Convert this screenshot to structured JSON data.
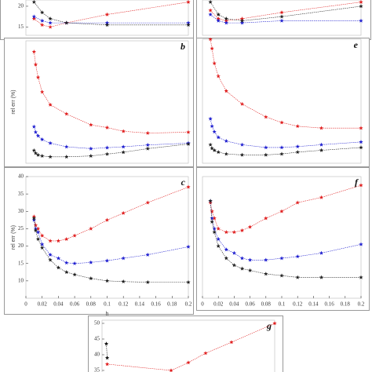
{
  "chart_data": [
    {
      "type": "line",
      "xlim": [
        0,
        0.2
      ],
      "ylim": [
        13,
        21.5
      ],
      "yticks": [
        15,
        20
      ],
      "x": [
        0.01,
        0.02,
        0.03,
        0.05,
        0.1,
        0.2
      ],
      "series": [
        {
          "name": "red",
          "color": "#e02020",
          "values": [
            17,
            15.5,
            15,
            16,
            18,
            21
          ]
        },
        {
          "name": "blue",
          "color": "#2020d0",
          "values": [
            17.5,
            16.5,
            16,
            16,
            16,
            16
          ]
        },
        {
          "name": "black",
          "color": "#222222",
          "values": [
            21,
            18.5,
            17,
            16,
            15.5,
            15.5
          ]
        }
      ]
    },
    {
      "type": "line",
      "xlim": [
        0,
        0.2
      ],
      "ylim": [
        13,
        21.5
      ],
      "x": [
        0.01,
        0.02,
        0.03,
        0.05,
        0.1,
        0.2
      ],
      "series": [
        {
          "name": "red",
          "color": "#e02020",
          "values": [
            19,
            17,
            16.5,
            17,
            18.5,
            21
          ]
        },
        {
          "name": "blue",
          "color": "#2020d0",
          "values": [
            18,
            16.5,
            16,
            16,
            16.5,
            16.5
          ]
        },
        {
          "name": "black",
          "color": "#222222",
          "values": [
            21,
            18,
            17,
            16.5,
            17.5,
            20
          ]
        }
      ]
    },
    {
      "type": "line",
      "title": "b",
      "y_label": "rel err (%)",
      "xlim": [
        0,
        0.2
      ],
      "ylim": [
        8,
        75
      ],
      "x": [
        0.01,
        0.012,
        0.015,
        0.02,
        0.03,
        0.05,
        0.08,
        0.1,
        0.12,
        0.15,
        0.2
      ],
      "series": [
        {
          "name": "red",
          "color": "#e02020",
          "values": [
            69,
            62,
            55,
            47,
            40,
            35,
            29,
            27.5,
            25.5,
            24.5,
            25
          ]
        },
        {
          "name": "blue",
          "color": "#2020d0",
          "values": [
            28,
            25,
            23,
            21,
            19,
            17,
            16,
            16.5,
            17,
            18,
            19
          ]
        },
        {
          "name": "black",
          "color": "#222222",
          "values": [
            15,
            13.5,
            12.5,
            12,
            11.5,
            11.5,
            12,
            13,
            14,
            16,
            18.5
          ]
        }
      ]
    },
    {
      "type": "line",
      "title": "e",
      "xlim": [
        0,
        0.2
      ],
      "ylim": [
        8,
        75
      ],
      "x": [
        0.01,
        0.012,
        0.015,
        0.02,
        0.03,
        0.05,
        0.08,
        0.1,
        0.12,
        0.15,
        0.2
      ],
      "series": [
        {
          "name": "red",
          "color": "#e02020",
          "values": [
            75,
            70,
            62,
            55,
            47,
            40,
            33,
            30,
            28,
            27,
            27
          ]
        },
        {
          "name": "blue",
          "color": "#2020d0",
          "values": [
            32,
            28,
            25,
            22,
            20,
            18,
            16.5,
            16.5,
            17,
            18,
            19.5
          ]
        },
        {
          "name": "black",
          "color": "#222222",
          "values": [
            18,
            16,
            15,
            14,
            13,
            12.5,
            12.5,
            13,
            14,
            15,
            16.5
          ]
        }
      ]
    },
    {
      "type": "line",
      "title": "c",
      "y_label": "rel err (%)",
      "x_label": "h",
      "xlim": [
        0,
        0.2
      ],
      "ylim": [
        5,
        40
      ],
      "yticks": [
        10,
        15,
        20,
        25,
        30,
        35,
        40
      ],
      "xticks": [
        0,
        0.02,
        0.04,
        0.06,
        0.08,
        0.1,
        0.12,
        0.14,
        0.16,
        0.18,
        0.2
      ],
      "x": [
        0.01,
        0.012,
        0.015,
        0.02,
        0.03,
        0.04,
        0.05,
        0.06,
        0.08,
        0.1,
        0.12,
        0.15,
        0.2
      ],
      "series": [
        {
          "name": "red",
          "color": "#e02020",
          "values": [
            28.5,
            26,
            25,
            23,
            21.5,
            21.5,
            22,
            23,
            25,
            27.5,
            29.5,
            32.5,
            37
          ]
        },
        {
          "name": "blue",
          "color": "#2020d0",
          "values": [
            27.5,
            25,
            24,
            20.5,
            17.5,
            16.5,
            15.2,
            15,
            15.3,
            15.8,
            16.5,
            17.5,
            19.8
          ]
        },
        {
          "name": "black",
          "color": "#222222",
          "values": [
            28,
            24.5,
            22,
            19.5,
            16,
            13.8,
            12.5,
            11.8,
            10.7,
            10,
            9.8,
            9.6,
            9.6
          ]
        }
      ]
    },
    {
      "type": "line",
      "title": "f",
      "xlim": [
        0,
        0.2
      ],
      "ylim": [
        5,
        40
      ],
      "xticks": [
        0,
        0.02,
        0.04,
        0.06,
        0.08,
        0.1,
        0.12,
        0.14,
        0.16,
        0.18,
        0.2
      ],
      "x": [
        0.01,
        0.012,
        0.015,
        0.02,
        0.03,
        0.04,
        0.05,
        0.06,
        0.08,
        0.1,
        0.12,
        0.15,
        0.2
      ],
      "series": [
        {
          "name": "red",
          "color": "#e02020",
          "values": [
            32.5,
            30,
            28,
            25,
            24,
            24,
            24.5,
            25.5,
            28,
            30,
            32.5,
            34,
            37.5
          ]
        },
        {
          "name": "blue",
          "color": "#2020d0",
          "values": [
            33,
            28,
            25,
            22,
            19,
            18,
            16.5,
            16,
            16,
            16.5,
            17,
            18,
            20.5
          ]
        },
        {
          "name": "black",
          "color": "#222222",
          "values": [
            33,
            27,
            24,
            20,
            16.5,
            14.5,
            13.5,
            13,
            12,
            11.5,
            11,
            11,
            11
          ]
        }
      ]
    },
    {
      "type": "line",
      "title": "g",
      "xlim": [
        0,
        0.2
      ],
      "ylim": [
        33,
        51
      ],
      "yticks": [
        35,
        40,
        45,
        50
      ],
      "x": [
        0.005,
        0.006,
        0.08,
        0.1,
        0.12,
        0.15,
        0.2
      ],
      "series": [
        {
          "name": "red",
          "color": "#e02020",
          "values": [
            null,
            37,
            35,
            37.5,
            40.5,
            44,
            50
          ]
        },
        {
          "name": "black",
          "color": "#111111",
          "values": [
            43.5,
            39,
            null,
            null,
            null,
            null,
            null
          ]
        }
      ]
    }
  ]
}
